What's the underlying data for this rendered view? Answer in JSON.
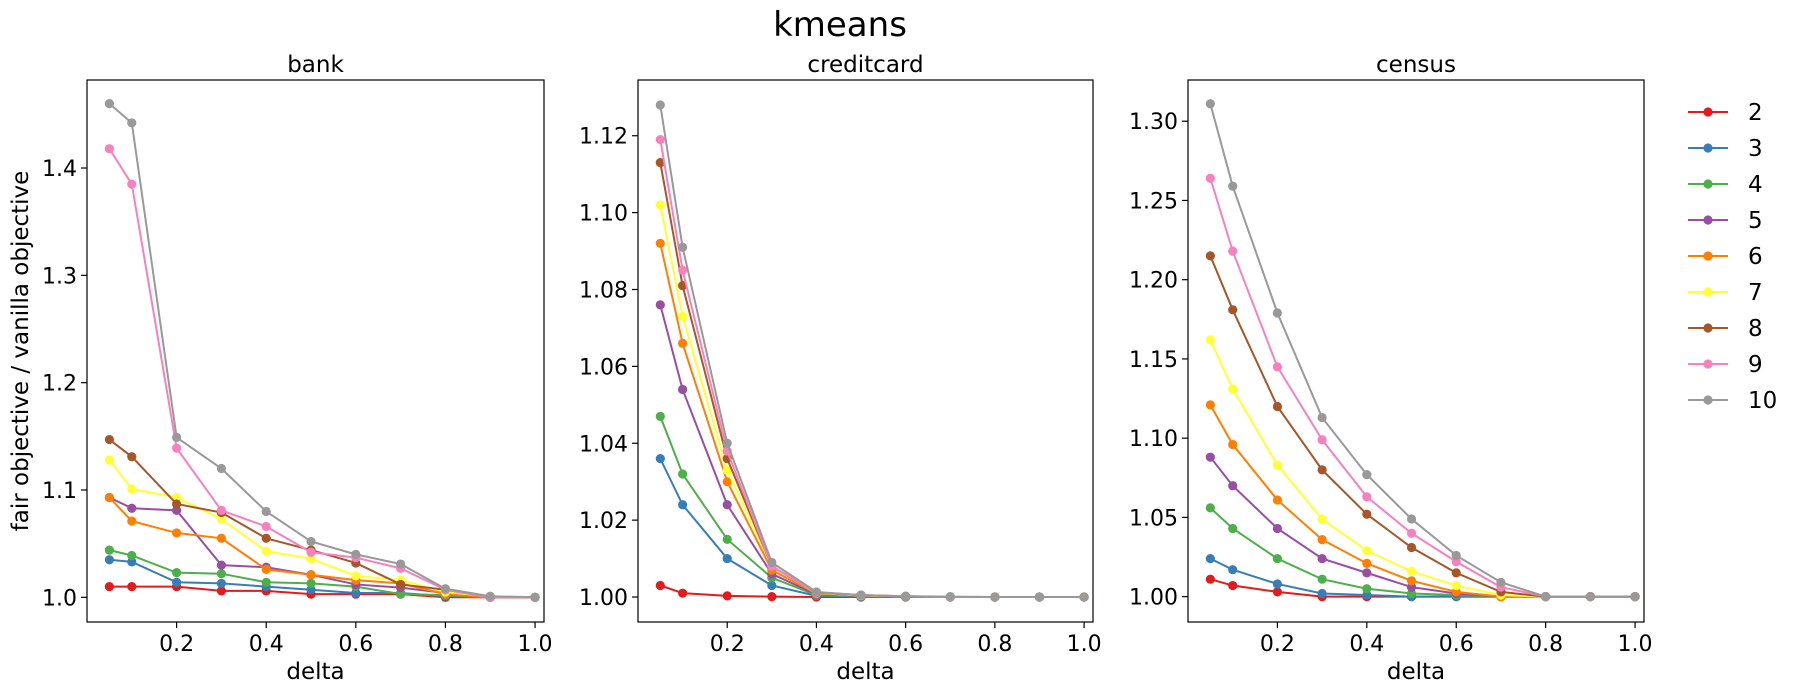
{
  "figure_title": "kmeans",
  "y_axis_label": "fair objective / vanilla objective",
  "legend": {
    "placement": "right",
    "entries": [
      {
        "label": "2",
        "color": "#e41a1c"
      },
      {
        "label": "3",
        "color": "#377eb8"
      },
      {
        "label": "4",
        "color": "#4daf4a"
      },
      {
        "label": "5",
        "color": "#984ea3"
      },
      {
        "label": "6",
        "color": "#ff7f00"
      },
      {
        "label": "7",
        "color": "#ffff33"
      },
      {
        "label": "8",
        "color": "#a65628"
      },
      {
        "label": "9",
        "color": "#f781bf"
      },
      {
        "label": "10",
        "color": "#999999"
      }
    ]
  },
  "chart_data": [
    {
      "type": "line",
      "title": "bank",
      "xlabel": "delta",
      "ylabel": "fair objective / vanilla objective",
      "x": [
        0.05,
        0.1,
        0.2,
        0.3,
        0.4,
        0.5,
        0.6,
        0.7,
        0.8,
        0.9,
        1.0
      ],
      "xlim": [
        0.0,
        1.02
      ],
      "ylim": [
        0.977,
        1.482
      ],
      "xticks": [
        0.2,
        0.4,
        0.6,
        0.8,
        1.0
      ],
      "xticklabels": [
        "0.2",
        "0.4",
        "0.6",
        "0.8",
        "1.0"
      ],
      "yticks": [
        1.0,
        1.1,
        1.2,
        1.3,
        1.4
      ],
      "yticklabels": [
        "1.0",
        "1.1",
        "1.2",
        "1.3",
        "1.4"
      ],
      "series": [
        {
          "name": "2",
          "values": [
            1.01,
            1.01,
            1.01,
            1.006,
            1.006,
            1.003,
            1.003,
            1.003,
            1.0,
            1.0,
            1.0
          ]
        },
        {
          "name": "3",
          "values": [
            1.035,
            1.033,
            1.014,
            1.013,
            1.01,
            1.007,
            1.004,
            1.004,
            1.001,
            1.0,
            1.0
          ]
        },
        {
          "name": "4",
          "values": [
            1.044,
            1.039,
            1.023,
            1.022,
            1.014,
            1.013,
            1.01,
            1.003,
            1.002,
            1.0,
            1.0
          ]
        },
        {
          "name": "5",
          "values": [
            1.093,
            1.083,
            1.081,
            1.03,
            1.028,
            1.021,
            1.012,
            1.009,
            1.004,
            1.0,
            1.0
          ]
        },
        {
          "name": "6",
          "values": [
            1.093,
            1.071,
            1.06,
            1.055,
            1.026,
            1.021,
            1.016,
            1.013,
            1.003,
            1.0,
            1.0
          ]
        },
        {
          "name": "7",
          "values": [
            1.128,
            1.101,
            1.093,
            1.073,
            1.043,
            1.036,
            1.02,
            1.016,
            1.005,
            1.001,
            1.0
          ]
        },
        {
          "name": "8",
          "values": [
            1.147,
            1.131,
            1.087,
            1.079,
            1.055,
            1.044,
            1.032,
            1.012,
            1.007,
            1.0,
            1.0
          ]
        },
        {
          "name": "9",
          "values": [
            1.418,
            1.385,
            1.139,
            1.081,
            1.066,
            1.042,
            1.037,
            1.027,
            1.007,
            1.0,
            1.0
          ]
        },
        {
          "name": "10",
          "values": [
            1.46,
            1.442,
            1.149,
            1.12,
            1.08,
            1.052,
            1.04,
            1.031,
            1.008,
            1.001,
            1.0
          ]
        }
      ]
    },
    {
      "type": "line",
      "title": "creditcard",
      "xlabel": "delta",
      "ylabel": "",
      "x": [
        0.05,
        0.1,
        0.2,
        0.3,
        0.4,
        0.5,
        0.6,
        0.7,
        0.8,
        0.9,
        1.0
      ],
      "xlim": [
        0.0,
        1.02
      ],
      "ylim": [
        0.9935,
        1.1345
      ],
      "xticks": [
        0.2,
        0.4,
        0.6,
        0.8,
        1.0
      ],
      "xticklabels": [
        "0.2",
        "0.4",
        "0.6",
        "0.8",
        "1.0"
      ],
      "yticks": [
        1.0,
        1.02,
        1.04,
        1.06,
        1.08,
        1.1,
        1.12
      ],
      "yticklabels": [
        "1.00",
        "1.02",
        "1.04",
        "1.06",
        "1.08",
        "1.10",
        "1.12"
      ],
      "series": [
        {
          "name": "2",
          "values": [
            1.003,
            1.001,
            1.0003,
            1.0001,
            1.0,
            1.0,
            1.0,
            1.0,
            1.0,
            1.0,
            1.0
          ]
        },
        {
          "name": "3",
          "values": [
            1.036,
            1.024,
            1.01,
            1.003,
            1.0003,
            1.0001,
            1.0,
            1.0,
            1.0,
            1.0,
            1.0
          ]
        },
        {
          "name": "4",
          "values": [
            1.047,
            1.032,
            1.015,
            1.005,
            1.0005,
            1.0002,
            1.0001,
            1.0,
            1.0,
            1.0,
            1.0
          ]
        },
        {
          "name": "5",
          "values": [
            1.076,
            1.054,
            1.024,
            1.006,
            1.0007,
            1.0003,
            1.0001,
            1.0,
            1.0,
            1.0,
            1.0
          ]
        },
        {
          "name": "6",
          "values": [
            1.092,
            1.066,
            1.03,
            1.007,
            1.0009,
            1.0004,
            1.0001,
            1.0,
            1.0,
            1.0,
            1.0
          ]
        },
        {
          "name": "7",
          "values": [
            1.102,
            1.073,
            1.033,
            1.008,
            1.001,
            1.0004,
            1.0002,
            1.0,
            1.0,
            1.0,
            1.0
          ]
        },
        {
          "name": "8",
          "values": [
            1.113,
            1.081,
            1.036,
            1.008,
            1.0011,
            1.0005,
            1.0002,
            1.0,
            1.0,
            1.0,
            1.0
          ]
        },
        {
          "name": "9",
          "values": [
            1.119,
            1.085,
            1.038,
            1.008,
            1.0012,
            1.0005,
            1.0002,
            1.0,
            1.0,
            1.0,
            1.0
          ]
        },
        {
          "name": "10",
          "values": [
            1.128,
            1.091,
            1.04,
            1.009,
            1.0013,
            1.0005,
            1.0002,
            1.0001,
            1.0,
            1.0,
            1.0
          ]
        }
      ]
    },
    {
      "type": "line",
      "title": "census",
      "xlabel": "delta",
      "ylabel": "",
      "x": [
        0.05,
        0.1,
        0.2,
        0.3,
        0.4,
        0.5,
        0.6,
        0.7,
        0.8,
        0.9,
        1.0
      ],
      "xlim": [
        0.0,
        1.02
      ],
      "ylim": [
        0.984,
        1.326
      ],
      "xticks": [
        0.2,
        0.4,
        0.6,
        0.8,
        1.0
      ],
      "xticklabels": [
        "0.2",
        "0.4",
        "0.6",
        "0.8",
        "1.0"
      ],
      "yticks": [
        1.0,
        1.05,
        1.1,
        1.15,
        1.2,
        1.25,
        1.3
      ],
      "yticklabels": [
        "1.00",
        "1.05",
        "1.10",
        "1.15",
        "1.20",
        "1.25",
        "1.30"
      ],
      "series": [
        {
          "name": "2",
          "values": [
            1.011,
            1.007,
            1.003,
            1.0,
            1.0,
            1.0,
            1.0,
            1.0,
            1.0,
            1.0,
            1.0
          ]
        },
        {
          "name": "3",
          "values": [
            1.024,
            1.017,
            1.008,
            1.002,
            1.001,
            1.0,
            1.0,
            1.0,
            1.0,
            1.0,
            1.0
          ]
        },
        {
          "name": "4",
          "values": [
            1.056,
            1.043,
            1.024,
            1.011,
            1.005,
            1.002,
            1.001,
            1.0,
            1.0,
            1.0,
            1.0
          ]
        },
        {
          "name": "5",
          "values": [
            1.088,
            1.07,
            1.043,
            1.024,
            1.015,
            1.006,
            1.002,
            1.0,
            1.0,
            1.0,
            1.0
          ]
        },
        {
          "name": "6",
          "values": [
            1.121,
            1.096,
            1.061,
            1.036,
            1.021,
            1.01,
            1.003,
            1.0,
            1.0,
            1.0,
            1.0
          ]
        },
        {
          "name": "7",
          "values": [
            1.162,
            1.131,
            1.083,
            1.049,
            1.029,
            1.016,
            1.007,
            1.001,
            1.0,
            1.0,
            1.0
          ]
        },
        {
          "name": "8",
          "values": [
            1.215,
            1.181,
            1.12,
            1.08,
            1.052,
            1.031,
            1.015,
            1.003,
            1.0,
            1.0,
            1.0
          ]
        },
        {
          "name": "9",
          "values": [
            1.264,
            1.218,
            1.145,
            1.099,
            1.063,
            1.04,
            1.022,
            1.006,
            1.0,
            1.0,
            1.0
          ]
        },
        {
          "name": "10",
          "values": [
            1.311,
            1.259,
            1.179,
            1.113,
            1.077,
            1.049,
            1.026,
            1.009,
            1.0,
            1.0,
            1.0
          ]
        }
      ]
    }
  ]
}
